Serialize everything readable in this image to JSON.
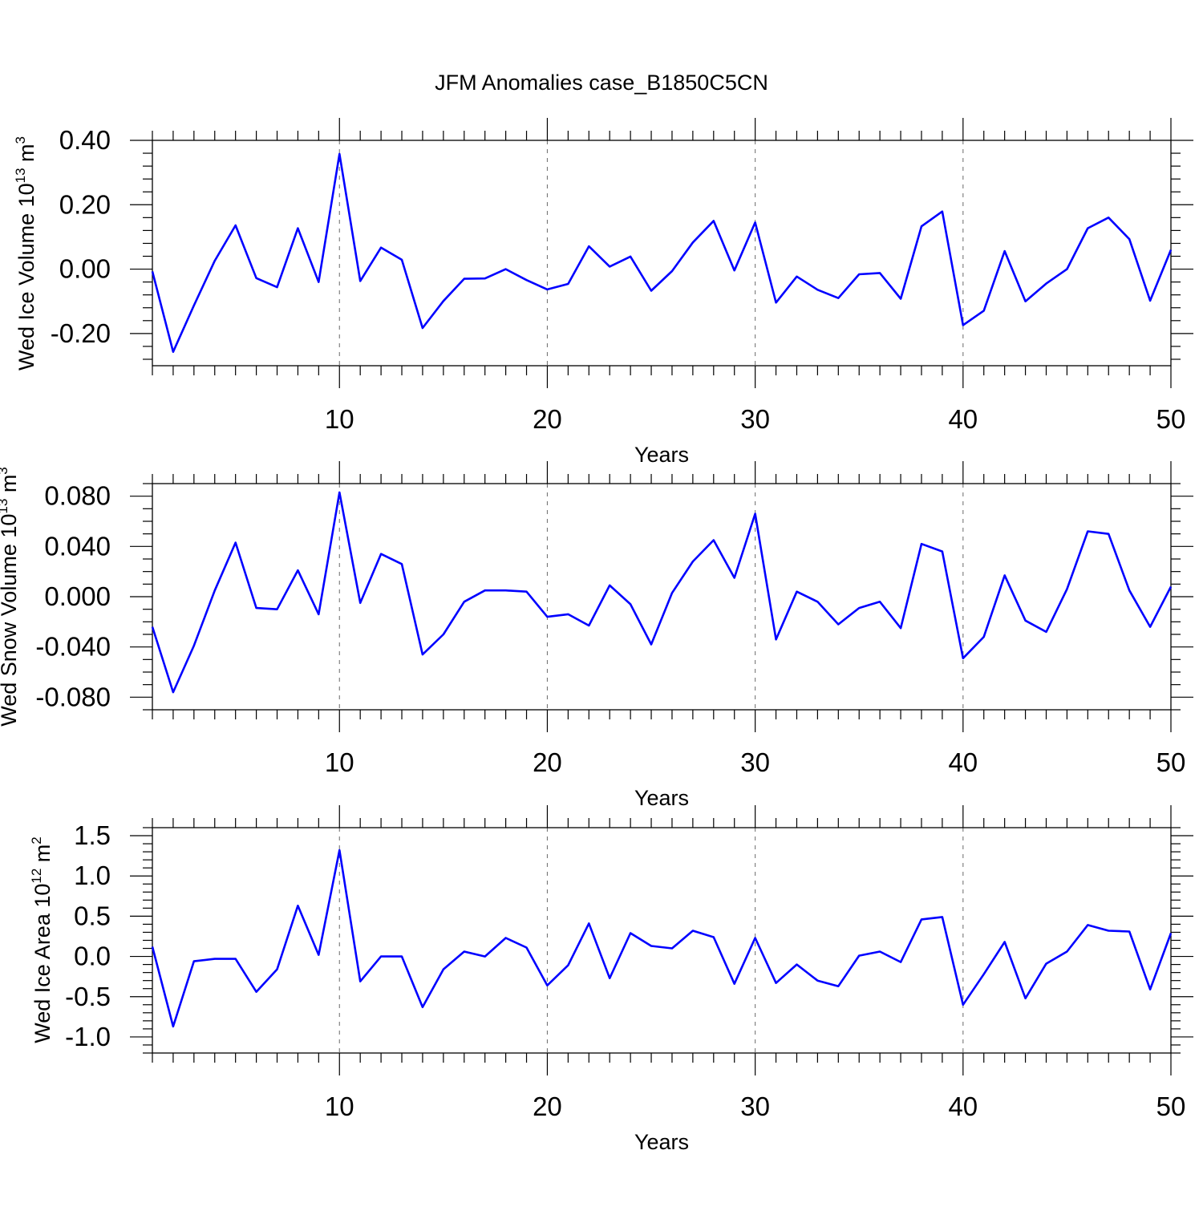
{
  "title": "JFM Anomalies case_B1850C5CN",
  "colors": {
    "line": "#0000ff",
    "axes": "#000000",
    "grid": "#777777"
  },
  "chart_data": [
    {
      "type": "line",
      "title": "JFM Anomalies case_B1850C5CN",
      "xlabel": "Years",
      "ylabel_prefix": "Wed Ice Volume 10",
      "ylabel_exp": "13",
      "ylabel_unit": " m",
      "ylabel_unit_exp": "3",
      "xlim": [
        1,
        50
      ],
      "ylim": [
        -0.3,
        0.4
      ],
      "xticks": [
        10,
        20,
        30,
        40,
        50
      ],
      "xtick_labels": [
        "10",
        "20",
        "30",
        "40",
        "50"
      ],
      "yticks": [
        0.4,
        0.2,
        0.0,
        -0.2
      ],
      "ytick_labels": [
        "0.40",
        "0.20",
        "0.00",
        "-0.20"
      ],
      "y_minor_step": 0.04,
      "grid_x": [
        10,
        20,
        30,
        40
      ],
      "series": [
        {
          "name": "Wed Ice Volume",
          "x": [
            1,
            2,
            3,
            4,
            5,
            6,
            7,
            8,
            9,
            10,
            11,
            12,
            13,
            14,
            15,
            16,
            17,
            18,
            19,
            20,
            21,
            22,
            23,
            24,
            25,
            26,
            27,
            28,
            29,
            30,
            31,
            32,
            33,
            34,
            35,
            36,
            37,
            38,
            39,
            40,
            41,
            42,
            43,
            44,
            45,
            46,
            47,
            48,
            49,
            50
          ],
          "values": [
            -0.007,
            -0.257,
            -0.113,
            0.026,
            0.136,
            -0.028,
            -0.056,
            0.127,
            -0.04,
            0.358,
            -0.037,
            0.067,
            0.029,
            -0.183,
            -0.099,
            -0.03,
            -0.029,
            0.0,
            -0.034,
            -0.063,
            -0.046,
            0.071,
            0.008,
            0.039,
            -0.067,
            -0.006,
            0.083,
            0.15,
            -0.004,
            0.145,
            -0.104,
            -0.023,
            -0.064,
            -0.09,
            -0.016,
            -0.012,
            -0.092,
            0.133,
            0.179,
            -0.174,
            -0.129,
            0.056,
            -0.1,
            -0.045,
            0.0,
            0.127,
            0.16,
            0.093,
            -0.098,
            0.06
          ]
        }
      ]
    },
    {
      "type": "line",
      "xlabel": "Years",
      "ylabel_prefix": "Wed Snow Volume 10",
      "ylabel_exp": "13",
      "ylabel_unit": " m",
      "ylabel_unit_exp": "3",
      "xlim": [
        1,
        50
      ],
      "ylim": [
        -0.09,
        0.09
      ],
      "xticks": [
        10,
        20,
        30,
        40,
        50
      ],
      "xtick_labels": [
        "10",
        "20",
        "30",
        "40",
        "50"
      ],
      "yticks": [
        0.08,
        0.04,
        0.0,
        -0.04,
        -0.08
      ],
      "ytick_labels": [
        "0.080",
        "0.040",
        "0.000",
        "-0.040",
        "-0.080"
      ],
      "y_minor_step": 0.01,
      "grid_x": [
        10,
        20,
        30,
        40
      ],
      "series": [
        {
          "name": "Wed Snow Volume",
          "x": [
            1,
            2,
            3,
            4,
            5,
            6,
            7,
            8,
            9,
            10,
            11,
            12,
            13,
            14,
            15,
            16,
            17,
            18,
            19,
            20,
            21,
            22,
            23,
            24,
            25,
            26,
            27,
            28,
            29,
            30,
            31,
            32,
            33,
            34,
            35,
            36,
            37,
            38,
            39,
            40,
            41,
            42,
            43,
            44,
            45,
            46,
            47,
            48,
            49,
            50
          ],
          "values": [
            -0.024,
            -0.076,
            -0.039,
            0.005,
            0.043,
            -0.009,
            -0.01,
            0.021,
            -0.014,
            0.083,
            -0.005,
            0.034,
            0.026,
            -0.046,
            -0.03,
            -0.004,
            0.005,
            0.005,
            0.004,
            -0.016,
            -0.014,
            -0.023,
            0.009,
            -0.006,
            -0.038,
            0.003,
            0.028,
            0.045,
            0.015,
            0.066,
            -0.034,
            0.004,
            -0.004,
            -0.022,
            -0.009,
            -0.004,
            -0.025,
            0.042,
            0.036,
            -0.049,
            -0.032,
            0.017,
            -0.019,
            -0.028,
            0.006,
            0.052,
            0.05,
            0.005,
            -0.024,
            0.008
          ]
        }
      ]
    },
    {
      "type": "line",
      "xlabel": "Years",
      "ylabel_prefix": "Wed Ice Area 10",
      "ylabel_exp": "12",
      "ylabel_unit": " m",
      "ylabel_unit_exp": "2",
      "xlim": [
        1,
        50
      ],
      "ylim": [
        -1.2,
        1.6
      ],
      "xticks": [
        10,
        20,
        30,
        40,
        50
      ],
      "xtick_labels": [
        "10",
        "20",
        "30",
        "40",
        "50"
      ],
      "yticks": [
        1.5,
        1.0,
        0.5,
        0.0,
        -0.5,
        -1.0
      ],
      "ytick_labels": [
        "1.5",
        "1.0",
        "0.5",
        "0.0",
        "-0.5",
        "-1.0"
      ],
      "y_minor_step": 0.1,
      "grid_x": [
        10,
        20,
        30,
        40
      ],
      "series": [
        {
          "name": "Wed Ice Area",
          "x": [
            1,
            2,
            3,
            4,
            5,
            6,
            7,
            8,
            9,
            10,
            11,
            12,
            13,
            14,
            15,
            16,
            17,
            18,
            19,
            20,
            21,
            22,
            23,
            24,
            25,
            26,
            27,
            28,
            29,
            30,
            31,
            32,
            33,
            34,
            35,
            36,
            37,
            38,
            39,
            40,
            41,
            42,
            43,
            44,
            45,
            46,
            47,
            48,
            49,
            50
          ],
          "values": [
            0.12,
            -0.87,
            -0.06,
            -0.03,
            -0.03,
            -0.44,
            -0.16,
            0.63,
            0.02,
            1.32,
            -0.31,
            0.0,
            0.0,
            -0.63,
            -0.16,
            0.06,
            0.0,
            0.23,
            0.11,
            -0.36,
            -0.11,
            0.41,
            -0.27,
            0.29,
            0.13,
            0.1,
            0.32,
            0.24,
            -0.34,
            0.23,
            -0.33,
            -0.1,
            -0.3,
            -0.37,
            0.01,
            0.06,
            -0.07,
            0.46,
            0.49,
            -0.6,
            -0.22,
            0.18,
            -0.52,
            -0.09,
            0.06,
            0.39,
            0.32,
            0.31,
            -0.41,
            0.29
          ]
        }
      ]
    }
  ]
}
